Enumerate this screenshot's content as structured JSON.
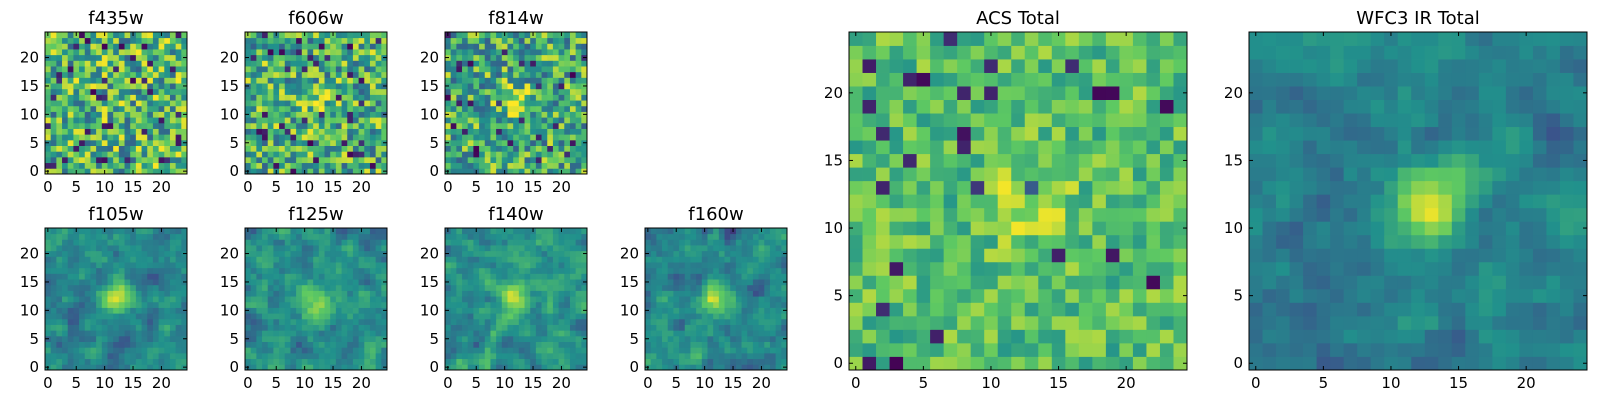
{
  "chart_data": [
    {
      "type": "heatmap",
      "title": "f435w",
      "grid": [
        25,
        25
      ],
      "xlim": [
        0,
        24
      ],
      "ylim": [
        0,
        24
      ],
      "xticks": [
        "0",
        "5",
        "10",
        "15",
        "20"
      ],
      "yticks": [
        "0",
        "5",
        "10",
        "15",
        "20"
      ],
      "colormap": "viridis",
      "source_hotspot": null
    },
    {
      "type": "heatmap",
      "title": "f606w",
      "grid": [
        25,
        25
      ],
      "xlim": [
        0,
        24
      ],
      "ylim": [
        0,
        24
      ],
      "xticks": [
        "0",
        "5",
        "10",
        "15",
        "20"
      ],
      "yticks": [
        "0",
        "5",
        "10",
        "15",
        "20"
      ],
      "colormap": "viridis",
      "source_hotspot": [
        12,
        12
      ]
    },
    {
      "type": "heatmap",
      "title": "f814w",
      "grid": [
        25,
        25
      ],
      "xlim": [
        0,
        24
      ],
      "ylim": [
        0,
        24
      ],
      "xticks": [
        "0",
        "5",
        "10",
        "15",
        "20"
      ],
      "yticks": [
        "0",
        "5",
        "10",
        "15",
        "20"
      ],
      "colormap": "viridis",
      "source_hotspot": [
        12,
        12
      ]
    },
    {
      "type": "heatmap",
      "title": "f105w",
      "grid": [
        25,
        25
      ],
      "xlim": [
        0,
        24
      ],
      "ylim": [
        0,
        24
      ],
      "xticks": [
        "0",
        "5",
        "10",
        "15",
        "20"
      ],
      "yticks": [
        "0",
        "5",
        "10",
        "15",
        "20"
      ],
      "colormap": "viridis",
      "source_hotspot": [
        12,
        12
      ]
    },
    {
      "type": "heatmap",
      "title": "f125w",
      "grid": [
        25,
        25
      ],
      "xlim": [
        0,
        24
      ],
      "ylim": [
        0,
        24
      ],
      "xticks": [
        "0",
        "5",
        "10",
        "15",
        "20"
      ],
      "yticks": [
        "0",
        "5",
        "10",
        "15",
        "20"
      ],
      "colormap": "viridis",
      "source_hotspot": [
        12,
        12
      ]
    },
    {
      "type": "heatmap",
      "title": "f140w",
      "grid": [
        25,
        25
      ],
      "xlim": [
        0,
        24
      ],
      "ylim": [
        0,
        24
      ],
      "xticks": [
        "0",
        "5",
        "10",
        "15",
        "20"
      ],
      "yticks": [
        "0",
        "5",
        "10",
        "15",
        "20"
      ],
      "colormap": "viridis",
      "source_hotspot": [
        12,
        12
      ]
    },
    {
      "type": "heatmap",
      "title": "f160w",
      "grid": [
        25,
        25
      ],
      "xlim": [
        0,
        24
      ],
      "ylim": [
        0,
        24
      ],
      "xticks": [
        "0",
        "5",
        "10",
        "15",
        "20"
      ],
      "yticks": [
        "0",
        "5",
        "10",
        "15",
        "20"
      ],
      "colormap": "viridis",
      "source_hotspot": [
        12,
        12
      ]
    },
    {
      "type": "heatmap",
      "title": "ACS Total",
      "grid": [
        25,
        25
      ],
      "xlim": [
        0,
        24
      ],
      "ylim": [
        0,
        24
      ],
      "xticks": [
        "0",
        "5",
        "10",
        "15",
        "20"
      ],
      "yticks": [
        "0",
        "5",
        "10",
        "15",
        "20"
      ],
      "colormap": "viridis",
      "source_hotspot": [
        13,
        12
      ]
    },
    {
      "type": "heatmap",
      "title": "WFC3 IR Total",
      "grid": [
        25,
        25
      ],
      "xlim": [
        0,
        24
      ],
      "ylim": [
        0,
        24
      ],
      "xticks": [
        "0",
        "5",
        "10",
        "15",
        "20"
      ],
      "yticks": [
        "0",
        "5",
        "10",
        "15",
        "20"
      ],
      "colormap": "viridis",
      "source_hotspot": [
        13,
        12
      ]
    }
  ],
  "palette": {
    "viridis": [
      "#440154",
      "#3b528b",
      "#21918c",
      "#5ec962",
      "#fde725"
    ],
    "axis": "#000000",
    "background": "#ffffff"
  }
}
